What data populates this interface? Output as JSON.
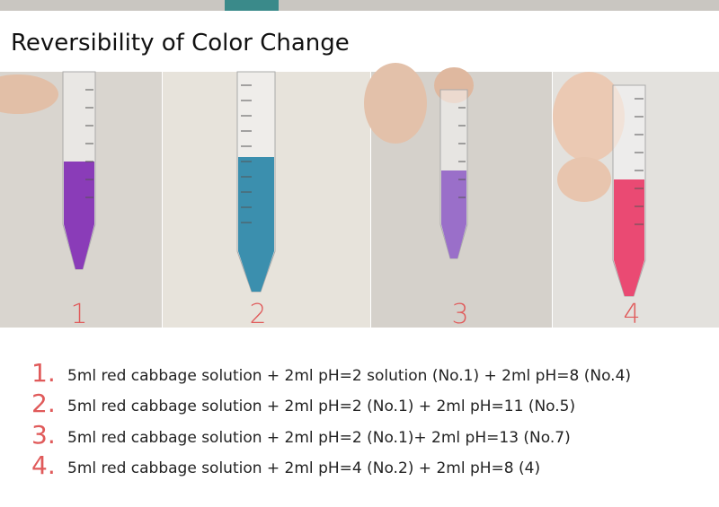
{
  "title": "Reversibility of Color Change",
  "panels": [
    {
      "label": "1"
    },
    {
      "label": "2"
    },
    {
      "label": "3"
    },
    {
      "label": "4"
    }
  ],
  "steps": [
    {
      "number": "1.",
      "text": "5ml red cabbage solution + 2ml pH=2 solution (No.1) + 2ml pH=8 (No.4)"
    },
    {
      "number": "2.",
      "text": "5ml red cabbage solution + 2ml pH=2 (No.1) + 2ml pH=11 (No.5)"
    },
    {
      "number": "3.",
      "text": "5ml red cabbage solution + 2ml pH=2 (No.1)+ 2ml pH=13 (No.7)"
    },
    {
      "number": "4.",
      "text": "5ml red cabbage solution + 2ml pH=4 (No.2) + 2ml pH=8 (4)"
    }
  ]
}
